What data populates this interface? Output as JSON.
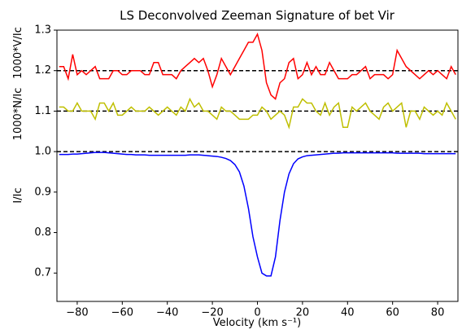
{
  "chart_data": {
    "type": "line",
    "title": "LS Deconvolved Zeeman Signature of bet Vir",
    "x_label": "Velocity (km s⁻¹)",
    "y_labels": [
      "I/Ic",
      "1000*N/Ic",
      "1000*V/Ic"
    ],
    "xlim": [
      -89,
      89
    ],
    "ylim": [
      0.63,
      1.3
    ],
    "xticks": [
      {
        "value": -80,
        "label": "−80"
      },
      {
        "value": -60,
        "label": "−60"
      },
      {
        "value": -40,
        "label": "−40"
      },
      {
        "value": -20,
        "label": "−20"
      },
      0,
      20,
      40,
      60,
      80
    ],
    "yticks": [
      0.7,
      0.8,
      0.9,
      {
        "value": 1.0,
        "label": "1.0"
      },
      1.1,
      1.2,
      1.3
    ],
    "hlines": [
      1.0,
      1.1,
      1.2
    ],
    "hline_color": "#000000",
    "x": [
      -88,
      -86,
      -84,
      -82,
      -80,
      -78,
      -76,
      -74,
      -72,
      -70,
      -68,
      -66,
      -64,
      -62,
      -60,
      -58,
      -56,
      -54,
      -52,
      -50,
      -48,
      -46,
      -44,
      -42,
      -40,
      -38,
      -36,
      -34,
      -32,
      -30,
      -28,
      -26,
      -24,
      -22,
      -20,
      -18,
      -16,
      -14,
      -12,
      -10,
      -8,
      -6,
      -4,
      -2,
      0,
      2,
      4,
      6,
      8,
      10,
      12,
      14,
      16,
      18,
      20,
      22,
      24,
      26,
      28,
      30,
      32,
      34,
      36,
      38,
      40,
      42,
      44,
      46,
      48,
      50,
      52,
      54,
      56,
      58,
      60,
      62,
      64,
      66,
      68,
      70,
      72,
      74,
      76,
      78,
      80,
      82,
      84,
      86,
      88
    ],
    "series": [
      {
        "color": "#0000ff",
        "values": [
          0.993,
          0.993,
          0.993,
          0.994,
          0.994,
          0.995,
          0.996,
          0.997,
          0.998,
          0.998,
          0.998,
          0.997,
          0.996,
          0.995,
          0.994,
          0.993,
          0.993,
          0.992,
          0.992,
          0.992,
          0.991,
          0.991,
          0.991,
          0.991,
          0.991,
          0.991,
          0.991,
          0.991,
          0.991,
          0.992,
          0.992,
          0.992,
          0.991,
          0.99,
          0.989,
          0.988,
          0.986,
          0.983,
          0.978,
          0.968,
          0.95,
          0.915,
          0.86,
          0.79,
          0.74,
          0.7,
          0.693,
          0.693,
          0.74,
          0.83,
          0.9,
          0.945,
          0.97,
          0.982,
          0.987,
          0.99,
          0.991,
          0.992,
          0.993,
          0.994,
          0.995,
          0.996,
          0.996,
          0.997,
          0.997,
          0.997,
          0.997,
          0.997,
          0.997,
          0.997,
          0.997,
          0.997,
          0.997,
          0.997,
          0.997,
          0.996,
          0.996,
          0.996,
          0.996,
          0.996,
          0.996,
          0.995,
          0.995,
          0.995,
          0.995,
          0.995,
          0.995,
          0.995,
          0.995
        ]
      },
      {
        "color": "#bfbf00",
        "values": [
          1.11,
          1.11,
          1.1,
          1.1,
          1.12,
          1.1,
          1.1,
          1.1,
          1.08,
          1.12,
          1.12,
          1.1,
          1.12,
          1.09,
          1.09,
          1.1,
          1.11,
          1.1,
          1.1,
          1.1,
          1.11,
          1.1,
          1.09,
          1.1,
          1.11,
          1.1,
          1.09,
          1.11,
          1.1,
          1.13,
          1.11,
          1.12,
          1.1,
          1.1,
          1.09,
          1.08,
          1.11,
          1.1,
          1.1,
          1.09,
          1.08,
          1.08,
          1.08,
          1.09,
          1.09,
          1.11,
          1.1,
          1.08,
          1.09,
          1.1,
          1.09,
          1.06,
          1.11,
          1.11,
          1.13,
          1.12,
          1.12,
          1.1,
          1.09,
          1.12,
          1.09,
          1.11,
          1.12,
          1.06,
          1.06,
          1.11,
          1.1,
          1.11,
          1.12,
          1.1,
          1.09,
          1.08,
          1.11,
          1.12,
          1.1,
          1.11,
          1.12,
          1.06,
          1.1,
          1.1,
          1.08,
          1.11,
          1.1,
          1.09,
          1.1,
          1.09,
          1.12,
          1.1,
          1.08
        ]
      },
      {
        "color": "#ff0000",
        "values": [
          1.21,
          1.21,
          1.18,
          1.24,
          1.19,
          1.2,
          1.19,
          1.2,
          1.21,
          1.18,
          1.18,
          1.18,
          1.2,
          1.2,
          1.19,
          1.19,
          1.2,
          1.2,
          1.2,
          1.19,
          1.19,
          1.22,
          1.22,
          1.19,
          1.19,
          1.19,
          1.18,
          1.2,
          1.21,
          1.22,
          1.23,
          1.22,
          1.23,
          1.2,
          1.16,
          1.19,
          1.23,
          1.21,
          1.19,
          1.21,
          1.23,
          1.25,
          1.27,
          1.27,
          1.29,
          1.25,
          1.17,
          1.14,
          1.13,
          1.17,
          1.18,
          1.22,
          1.23,
          1.18,
          1.19,
          1.22,
          1.19,
          1.21,
          1.19,
          1.19,
          1.22,
          1.2,
          1.18,
          1.18,
          1.18,
          1.19,
          1.19,
          1.2,
          1.21,
          1.18,
          1.19,
          1.19,
          1.19,
          1.18,
          1.19,
          1.25,
          1.23,
          1.21,
          1.2,
          1.19,
          1.18,
          1.19,
          1.2,
          1.19,
          1.2,
          1.19,
          1.18,
          1.21,
          1.19
        ]
      }
    ]
  }
}
